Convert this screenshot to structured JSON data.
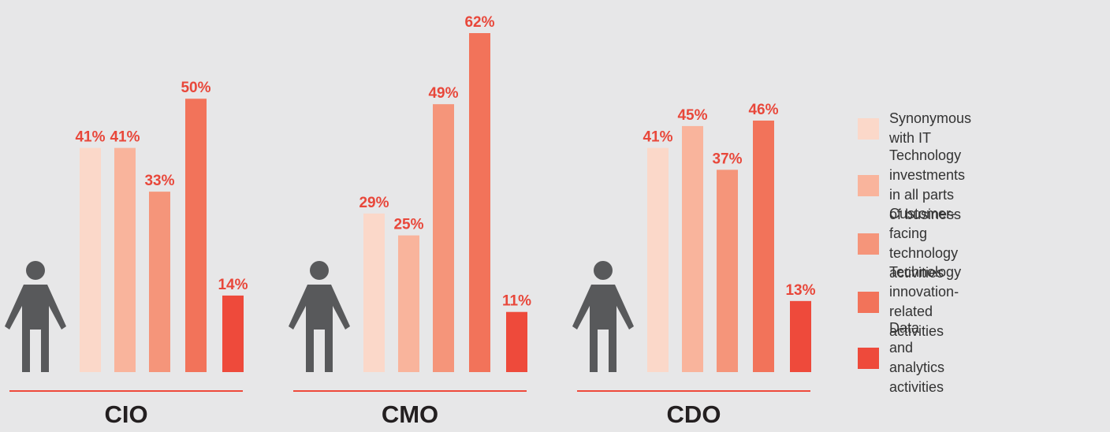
{
  "chart_data": {
    "type": "bar",
    "categories": [
      "CIO",
      "CMO",
      "CDO"
    ],
    "series": [
      {
        "name": "Synonymous with IT",
        "color": "#fbd8c9",
        "values": [
          41,
          29,
          41
        ],
        "value_labels": [
          "41%",
          "29%",
          "41%"
        ]
      },
      {
        "name": "Technology investments\nin all parts of business",
        "color": "#f9b49c",
        "values": [
          41,
          25,
          45
        ],
        "value_labels": [
          "41%",
          "25%",
          "45%"
        ]
      },
      {
        "name": "Customer-facing\ntechnology activities",
        "color": "#f5957a",
        "values": [
          33,
          49,
          37
        ],
        "value_labels": [
          "33%",
          "49%",
          "37%"
        ]
      },
      {
        "name": "Technology innovation-\nrelated activities",
        "color": "#f2735a",
        "values": [
          50,
          62,
          46
        ],
        "value_labels": [
          "50%",
          "62%",
          "46%"
        ]
      },
      {
        "name": "Data and analytics activities",
        "color": "#ee4a3b",
        "values": [
          14,
          11,
          13
        ],
        "value_labels": [
          "14%",
          "11%",
          "13%"
        ]
      }
    ],
    "legend": "right"
  }
}
